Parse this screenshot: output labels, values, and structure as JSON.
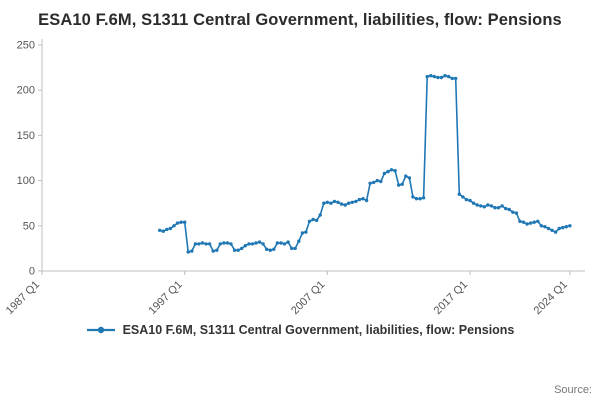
{
  "title": "ESA10 F.6M, S1311 Central Government, liabilities, flow: Pensions",
  "legend": {
    "label": "ESA10 F.6M, S1311 Central Government, liabilities, flow: Pensions"
  },
  "source_label": "Source:",
  "chart_data": {
    "type": "line",
    "title": "ESA10 F.6M, S1311 Central Government, liabilities, flow: Pensions",
    "xlabel": "",
    "ylabel": "",
    "ylim": [
      0,
      250
    ],
    "y_ticks": [
      0,
      50,
      100,
      150,
      200,
      250
    ],
    "x_ticks": [
      "1987 Q1",
      "1997 Q1",
      "2007 Q1",
      "2017 Q1",
      "2024 Q1"
    ],
    "x_range": [
      "1987 Q1",
      "2024 Q3"
    ],
    "grid": false,
    "legend_position": "bottom",
    "line_color": "#1f77b4",
    "series": [
      {
        "name": "ESA10 F.6M, S1311 Central Government, liabilities, flow: Pensions",
        "start": "1995 Q2",
        "frequency": "quarterly",
        "values": [
          45,
          44,
          46,
          47,
          50,
          53,
          54,
          54,
          21,
          22,
          30,
          30,
          31,
          30,
          30,
          22,
          23,
          30,
          31,
          31,
          30,
          23,
          23,
          25,
          28,
          30,
          30,
          31,
          32,
          30,
          24,
          23,
          24,
          31,
          31,
          30,
          32,
          25,
          25,
          33,
          42,
          43,
          55,
          57,
          56,
          62,
          75,
          76,
          75,
          77,
          76,
          74,
          73,
          75,
          76,
          77,
          79,
          80,
          78,
          97,
          98,
          100,
          99,
          108,
          110,
          112,
          111,
          95,
          96,
          105,
          103,
          82,
          80,
          80,
          81,
          215,
          216,
          215,
          214,
          214,
          216,
          215,
          213,
          213,
          85,
          82,
          79,
          78,
          75,
          73,
          72,
          71,
          73,
          72,
          70,
          70,
          72,
          69,
          68,
          65,
          64,
          55,
          54,
          52,
          53,
          54,
          55,
          50,
          49,
          47,
          45,
          43,
          47,
          48,
          49,
          50
        ]
      }
    ]
  }
}
